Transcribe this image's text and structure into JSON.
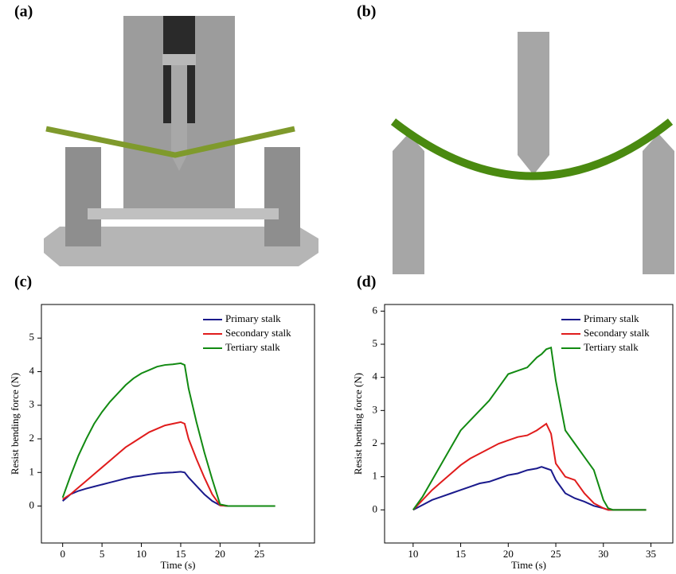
{
  "panel_labels": [
    "(a)",
    "(b)",
    "(c)",
    "(d)"
  ],
  "chart_data": [
    {
      "type": "line",
      "x_label": "Time (s)",
      "y_label": "Resist bending force (N)",
      "x": [
        0,
        1,
        2,
        3,
        4,
        5,
        6,
        7,
        8,
        9,
        10,
        11,
        12,
        13,
        14,
        15,
        15.5,
        16,
        17,
        18,
        19,
        20,
        21,
        22,
        23,
        24,
        25,
        26,
        27
      ],
      "series": [
        {
          "name": "Primary stalk",
          "color": "#1a1a8c",
          "values": [
            0.15,
            0.35,
            0.45,
            0.52,
            0.58,
            0.64,
            0.7,
            0.76,
            0.82,
            0.87,
            0.9,
            0.94,
            0.97,
            0.99,
            1.0,
            1.02,
            1.0,
            0.85,
            0.6,
            0.35,
            0.15,
            0.02,
            0,
            0,
            0,
            0,
            0,
            0,
            0
          ]
        },
        {
          "name": "Secondary stalk",
          "color": "#e01c1c",
          "values": [
            0.2,
            0.35,
            0.55,
            0.75,
            0.95,
            1.15,
            1.35,
            1.55,
            1.75,
            1.9,
            2.05,
            2.2,
            2.3,
            2.4,
            2.45,
            2.5,
            2.45,
            2.0,
            1.4,
            0.85,
            0.35,
            0.02,
            0,
            0,
            0,
            0,
            0,
            0,
            0
          ]
        },
        {
          "name": "Tertiary stalk",
          "color": "#128a12",
          "values": [
            0.25,
            0.9,
            1.5,
            2.0,
            2.45,
            2.8,
            3.1,
            3.35,
            3.6,
            3.8,
            3.95,
            4.05,
            4.15,
            4.2,
            4.22,
            4.25,
            4.2,
            3.5,
            2.5,
            1.6,
            0.8,
            0.05,
            0,
            0,
            0,
            0,
            0,
            0,
            0
          ]
        }
      ],
      "xlim": [
        -2.7,
        32
      ],
      "xticks": [
        0,
        5,
        10,
        15,
        20,
        25
      ],
      "ylim": [
        -1.1,
        6
      ],
      "yticks": [
        0,
        1,
        2,
        3,
        4,
        5
      ],
      "legend": "upper right"
    },
    {
      "type": "line",
      "x_label": "Time (s)",
      "y_label": "Resist bending force (N)",
      "x": [
        10,
        11,
        12,
        13,
        14,
        15,
        16,
        17,
        18,
        19,
        20,
        21,
        22,
        23,
        23.5,
        24,
        24.5,
        25,
        26,
        27,
        28,
        29,
        30,
        30.5,
        31,
        32,
        33,
        34,
        34.5
      ],
      "series": [
        {
          "name": "Primary stalk",
          "color": "#1a1a8c",
          "values": [
            0,
            0.15,
            0.3,
            0.4,
            0.5,
            0.6,
            0.7,
            0.8,
            0.85,
            0.95,
            1.05,
            1.1,
            1.2,
            1.25,
            1.3,
            1.25,
            1.2,
            0.9,
            0.5,
            0.35,
            0.25,
            0.12,
            0.05,
            0,
            0,
            0,
            0,
            0,
            0
          ]
        },
        {
          "name": "Secondary stalk",
          "color": "#e01c1c",
          "values": [
            0,
            0.3,
            0.6,
            0.85,
            1.1,
            1.35,
            1.55,
            1.7,
            1.85,
            2.0,
            2.1,
            2.2,
            2.25,
            2.4,
            2.5,
            2.6,
            2.3,
            1.4,
            1.0,
            0.9,
            0.5,
            0.2,
            0.05,
            0,
            0,
            0,
            0,
            0,
            0
          ]
        },
        {
          "name": "Tertiary stalk",
          "color": "#128a12",
          "values": [
            0,
            0.4,
            0.9,
            1.4,
            1.9,
            2.4,
            2.7,
            3.0,
            3.3,
            3.7,
            4.1,
            4.2,
            4.3,
            4.6,
            4.7,
            4.85,
            4.9,
            3.9,
            2.4,
            2.0,
            1.6,
            1.2,
            0.3,
            0.05,
            0,
            0,
            0,
            0,
            0
          ]
        }
      ],
      "xlim": [
        7,
        37.3
      ],
      "xticks": [
        10,
        15,
        20,
        25,
        30,
        35
      ],
      "ylim": [
        -1,
        6.2
      ],
      "yticks": [
        0,
        1,
        2,
        3,
        4,
        5,
        6
      ],
      "legend": "upper right"
    }
  ]
}
